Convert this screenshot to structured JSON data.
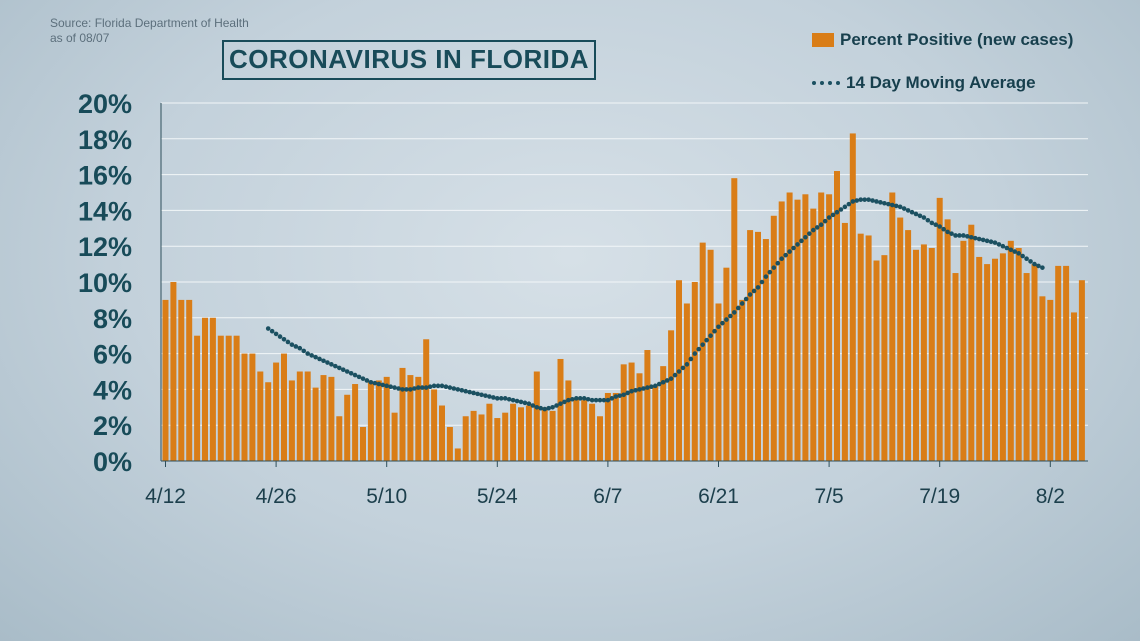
{
  "source": {
    "line1": "Source: Florida Department of Health",
    "line2": "as of 08/07"
  },
  "chart_data": {
    "type": "bar",
    "title": "CORONAVIRUS IN FLORIDA",
    "xlabel": "",
    "ylabel": "",
    "ylim": [
      0,
      20
    ],
    "y_ticks": [
      "0%",
      "2%",
      "4%",
      "6%",
      "8%",
      "10%",
      "12%",
      "14%",
      "16%",
      "18%",
      "20%"
    ],
    "x_tick_labels": [
      "4/12",
      "4/26",
      "5/10",
      "5/24",
      "6/7",
      "6/21",
      "7/5",
      "7/19",
      "8/2"
    ],
    "x_tick_day_index": [
      0,
      14,
      28,
      42,
      56,
      70,
      84,
      98,
      112
    ],
    "grid": true,
    "legend_position": "top-right",
    "colors": {
      "bars": "#d97d17",
      "moving_average": "#1b5061",
      "title": "#184b59"
    },
    "series": [
      {
        "name": "Percent Positive (new cases)",
        "type": "bar",
        "values": [
          9.0,
          10.0,
          9.0,
          9.0,
          7.0,
          8.0,
          8.0,
          7.0,
          7.0,
          7.0,
          6.0,
          6.0,
          5.0,
          4.4,
          5.5,
          6.0,
          4.5,
          5.0,
          5.0,
          4.1,
          4.8,
          4.7,
          2.5,
          3.7,
          4.3,
          1.9,
          4.4,
          4.5,
          4.7,
          2.7,
          5.2,
          4.8,
          4.7,
          6.8,
          4.0,
          3.1,
          1.9,
          0.7,
          2.5,
          2.8,
          2.6,
          3.2,
          2.4,
          2.7,
          3.2,
          3.0,
          3.1,
          5.0,
          3.0,
          2.8,
          5.7,
          4.5,
          3.5,
          3.4,
          3.2,
          2.5,
          3.8,
          3.8,
          5.4,
          5.5,
          4.9,
          6.2,
          4.2,
          5.3,
          7.3,
          10.1,
          8.8,
          10.0,
          12.2,
          11.8,
          8.8,
          10.8,
          15.8,
          9.0,
          12.9,
          12.8,
          12.4,
          13.7,
          14.5,
          15.0,
          14.6,
          14.9,
          14.1,
          15.0,
          14.9,
          16.2,
          13.3,
          18.3,
          12.7,
          12.6,
          11.2,
          11.5,
          15.0,
          13.6,
          12.9,
          11.8,
          12.1,
          11.9,
          14.7,
          13.5,
          10.5,
          12.3,
          13.2,
          11.4,
          11.0,
          11.3,
          11.6,
          12.3,
          11.9,
          10.5,
          11.0,
          9.2,
          9.0,
          10.9,
          10.9,
          8.3,
          10.1
        ]
      },
      {
        "name": "14 Day Moving Average",
        "type": "line",
        "start_day_index": 13,
        "values": [
          7.4,
          7.1,
          6.8,
          6.5,
          6.3,
          6.0,
          5.8,
          5.6,
          5.4,
          5.2,
          5.0,
          4.8,
          4.6,
          4.4,
          4.3,
          4.2,
          4.1,
          4.0,
          4.0,
          4.1,
          4.1,
          4.2,
          4.2,
          4.1,
          4.0,
          3.9,
          3.8,
          3.7,
          3.6,
          3.5,
          3.5,
          3.4,
          3.3,
          3.2,
          3.0,
          2.9,
          3.0,
          3.2,
          3.4,
          3.5,
          3.5,
          3.4,
          3.4,
          3.4,
          3.6,
          3.7,
          3.9,
          4.0,
          4.1,
          4.2,
          4.4,
          4.6,
          5.0,
          5.4,
          6.0,
          6.5,
          7.0,
          7.5,
          7.9,
          8.3,
          8.8,
          9.3,
          9.7,
          10.3,
          10.8,
          11.3,
          11.7,
          12.1,
          12.5,
          12.9,
          13.2,
          13.6,
          13.9,
          14.2,
          14.5,
          14.6,
          14.6,
          14.5,
          14.4,
          14.3,
          14.2,
          14.0,
          13.8,
          13.6,
          13.3,
          13.1,
          12.8,
          12.6,
          12.6,
          12.5,
          12.4,
          12.3,
          12.2,
          12.0,
          11.8,
          11.6,
          11.3,
          11.0,
          10.8
        ]
      }
    ]
  }
}
